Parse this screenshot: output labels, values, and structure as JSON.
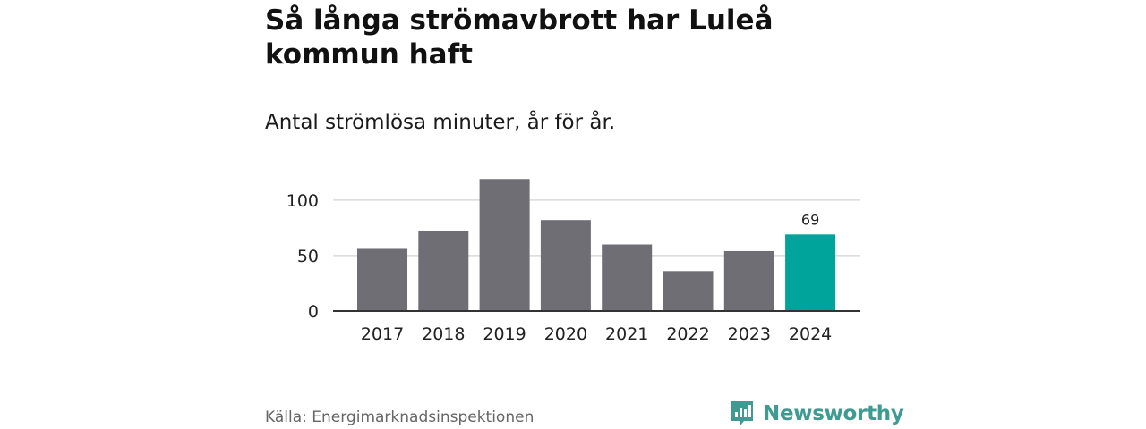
{
  "header": {
    "title": "Så långa strömavbrott har Luleå kommun haft",
    "subtitle": "Antal strömlösa minuter, år för år."
  },
  "chart_data": {
    "type": "bar",
    "title": "Så långa strömavbrott har Luleå kommun haft",
    "subtitle": "Antal strömlösa minuter, år för år.",
    "xlabel": "",
    "ylabel": "",
    "categories": [
      "2017",
      "2018",
      "2019",
      "2020",
      "2021",
      "2022",
      "2023",
      "2024"
    ],
    "values": [
      56,
      72,
      119,
      82,
      60,
      36,
      54,
      69
    ],
    "ylim": [
      0,
      120
    ],
    "yticks": [
      0,
      50,
      100
    ],
    "grid": true,
    "highlight_index": 7,
    "data_labels": [
      {
        "index": 7,
        "text": "69"
      }
    ],
    "colors": {
      "bar": "#6f6e75",
      "highlight": "#00a49a",
      "grid": "#d9d9d9",
      "axis": "#333333"
    }
  },
  "footer": {
    "source": "Källa: Energimarknadsinspektionen",
    "brand": "Newsworthy",
    "brand_icon": "newsworthy-logo-icon",
    "brand_color": "#3e9b92"
  }
}
